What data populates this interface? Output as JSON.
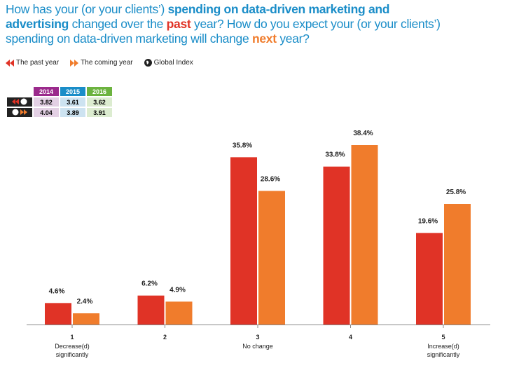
{
  "title": {
    "part1": "How has your (or your clients’) ",
    "bold1": "spending on data-driven marketing and advertising",
    "part2": " changed over the ",
    "past": "past",
    "part3": " year? How do you expect your (or your clients’) spending on data-driven marketing will change ",
    "next": "next",
    "part4": " year?"
  },
  "legend": [
    {
      "label": "The past year",
      "icon": "double-arrow-left-icon",
      "color": "#e03326"
    },
    {
      "label": "The coming year",
      "icon": "double-arrow-right-icon",
      "color": "#f07c2c"
    },
    {
      "label": "Global Index",
      "icon": "globe-icon",
      "color": "#222222"
    }
  ],
  "index_table": {
    "years": [
      "2014",
      "2015",
      "2016"
    ],
    "year_colors": [
      "#9b2a8c",
      "#1a8dc8",
      "#6cb33f"
    ],
    "cell_colors": [
      "#e3d0e4",
      "#cde3f1",
      "#dcecd0"
    ],
    "rows": [
      {
        "label": "past-year-global-index",
        "values": [
          "3.82",
          "3.61",
          "3.62"
        ]
      },
      {
        "label": "coming-year-global-index",
        "values": [
          "4.04",
          "3.89",
          "3.91"
        ]
      }
    ]
  },
  "chart_data": {
    "type": "bar",
    "categories": [
      "1",
      "2",
      "3",
      "4",
      "5"
    ],
    "category_sublabels": [
      "Decrease(d)\nsignificantly",
      "",
      "No change",
      "",
      "Increase(d)\nsignificantly"
    ],
    "series": [
      {
        "name": "The past year",
        "color": "#e03326",
        "values": [
          4.6,
          6.2,
          35.8,
          33.8,
          19.6
        ],
        "labels": [
          "4.6%",
          "6.2%",
          "35.8%",
          "33.8%",
          "19.6%"
        ]
      },
      {
        "name": "The coming year",
        "color": "#f07c2c",
        "values": [
          2.4,
          4.9,
          28.6,
          38.4,
          25.8
        ],
        "labels": [
          "2.4%",
          "4.9%",
          "28.6%",
          "38.4%",
          "25.8%"
        ]
      }
    ],
    "ylim": [
      0,
      40
    ],
    "grid": false
  }
}
